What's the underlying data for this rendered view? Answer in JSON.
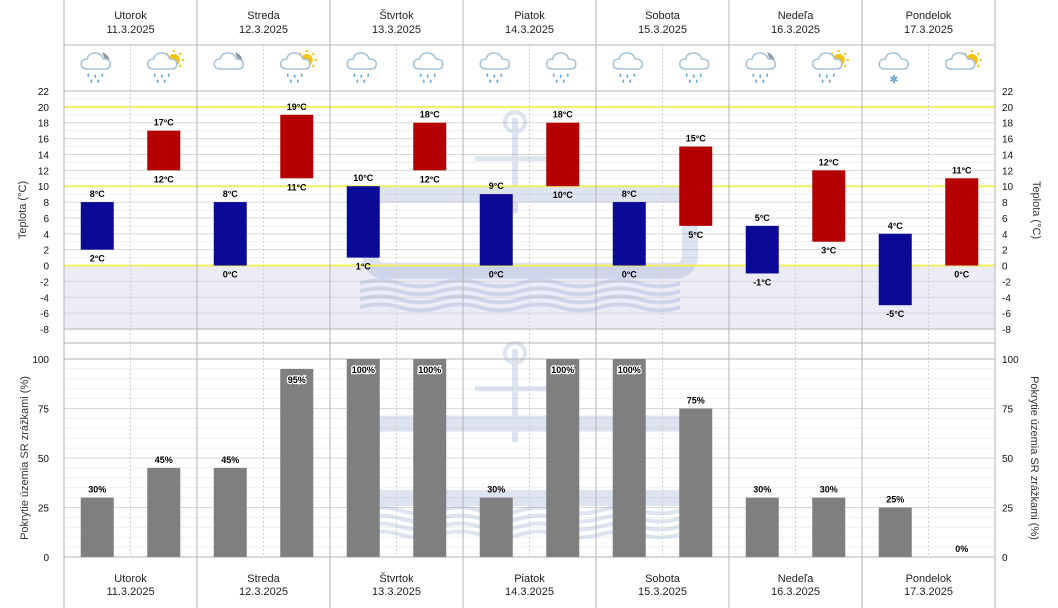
{
  "days": [
    {
      "name": "Utorok",
      "date": "11.3.2025",
      "icons": [
        "partly-cloudy-night-rain-icon",
        "partly-sunny-rain-icon"
      ]
    },
    {
      "name": "Streda",
      "date": "12.3.2025",
      "icons": [
        "partly-cloudy-night-icon",
        "partly-sunny-rain-icon"
      ]
    },
    {
      "name": "Štvrtok",
      "date": "13.3.2025",
      "icons": [
        "rain-cloud-icon",
        "rain-cloud-icon"
      ]
    },
    {
      "name": "Piatok",
      "date": "14.3.2025",
      "icons": [
        "rain-cloud-icon",
        "rain-cloud-icon"
      ]
    },
    {
      "name": "Sobota",
      "date": "15.3.2025",
      "icons": [
        "rain-cloud-icon",
        "rain-cloud-icon"
      ]
    },
    {
      "name": "Nedeľa",
      "date": "16.3.2025",
      "icons": [
        "partly-cloudy-night-rain-icon",
        "partly-sunny-rain-icon"
      ]
    },
    {
      "name": "Pondelok",
      "date": "17.3.2025",
      "icons": [
        "snow-cloud-icon",
        "partly-sunny-icon"
      ]
    }
  ],
  "chart_data": [
    {
      "type": "bar",
      "ylabel": "Teplota (°C)",
      "ylim": [
        -8,
        22
      ],
      "yticks": [
        22,
        20,
        18,
        16,
        14,
        12,
        10,
        8,
        6,
        4,
        2,
        0,
        -2,
        -4,
        -6,
        -8
      ],
      "categories": [
        "11.3.2025",
        "12.3.2025",
        "13.3.2025",
        "14.3.2025",
        "15.3.2025",
        "16.3.2025",
        "17.3.2025"
      ],
      "series": [
        {
          "values": [
            [
              2,
              8
            ],
            [
              0,
              8
            ],
            [
              1,
              10
            ],
            [
              0,
              9
            ],
            [
              0,
              8
            ],
            [
              -1,
              5
            ],
            [
              -5,
              4
            ]
          ],
          "color": "#0a0a96"
        },
        {
          "values": [
            [
              12,
              17
            ],
            [
              11,
              19
            ],
            [
              12,
              18
            ],
            [
              10,
              18
            ],
            [
              5,
              15
            ],
            [
              3,
              12
            ],
            [
              0,
              11
            ]
          ],
          "color": "#b40000"
        }
      ],
      "labels": [
        [
          "8°C",
          "2°C"
        ],
        [
          "17°C",
          "12°C"
        ],
        [
          "8°C",
          "0°C"
        ],
        [
          "19°C",
          "11°C"
        ],
        [
          "10°C",
          "1°C"
        ],
        [
          "18°C",
          "12°C"
        ],
        [
          "9°C",
          "0°C"
        ],
        [
          "18°C",
          "10°C"
        ],
        [
          "8°C",
          "0°C"
        ],
        [
          "15°C",
          "5°C"
        ],
        [
          "5°C",
          "-1°C"
        ],
        [
          "12°C",
          "3°C"
        ],
        [
          "4°C",
          "-5°C"
        ],
        [
          "11°C",
          "0°C"
        ]
      ],
      "reference_lines": [
        0,
        10,
        20
      ],
      "negative_shading": true
    },
    {
      "type": "bar",
      "ylabel": "Pokrytie územia SR zrážkami (%)",
      "ylim": [
        0,
        100
      ],
      "yticks": [
        100,
        75,
        50,
        25,
        0
      ],
      "values": [
        30,
        45,
        45,
        95,
        100,
        100,
        30,
        100,
        100,
        75,
        30,
        30,
        25,
        0
      ],
      "labels": [
        "30%",
        "45%",
        "45%",
        "95%",
        "100%",
        "100%",
        "30%",
        "100%",
        "100%",
        "75%",
        "30%",
        "30%",
        "25%",
        "0%"
      ],
      "color": "#7f7f7f"
    }
  ],
  "colors": {
    "tmin": "#0a0a96",
    "tmax": "#b40000",
    "precip": "#7f7f7f",
    "refline": "#f0ef60",
    "negshade": "#ececf8"
  }
}
